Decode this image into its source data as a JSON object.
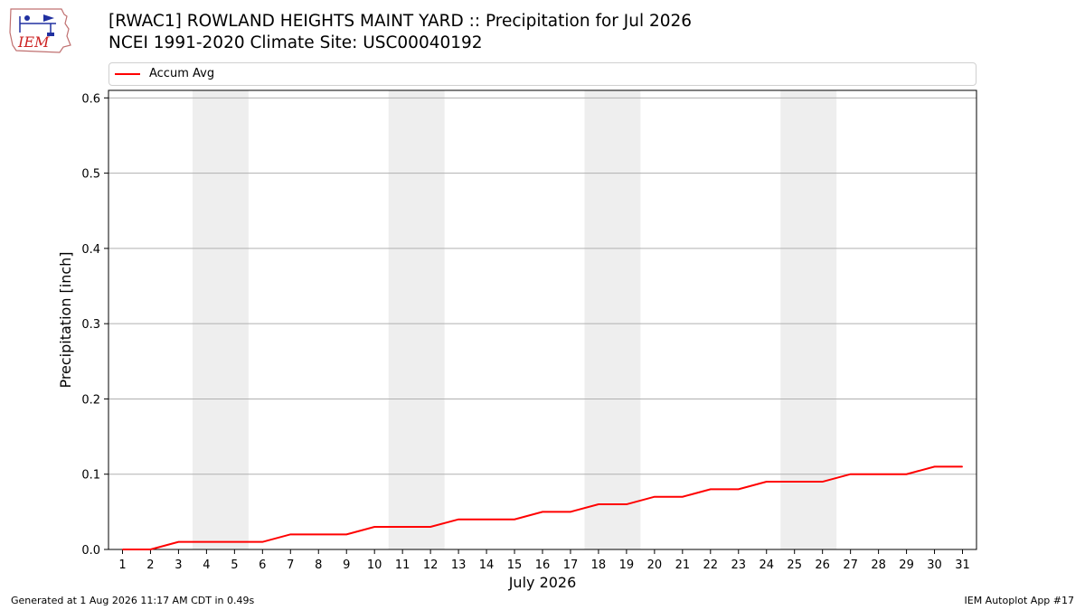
{
  "header": {
    "logo_text": "IEM",
    "title_line1": "[RWAC1] ROWLAND HEIGHTS MAINT YARD :: Precipitation for Jul 2026",
    "title_line2": "NCEI 1991-2020 Climate Site: USC00040192"
  },
  "footer": {
    "left": "Generated at 1 Aug 2026 11:17 AM CDT in 0.49s",
    "right": "IEM Autoplot App #17"
  },
  "colors": {
    "series": "#ff0000",
    "weekend_band": "#eeeeee",
    "grid": "#b0b0b0"
  },
  "chart_data": {
    "type": "line",
    "title": "[RWAC1] ROWLAND HEIGHTS MAINT YARD :: Precipitation for Jul 2026",
    "subtitle": "NCEI 1991-2020 Climate Site: USC00040192",
    "xlabel": "July 2026",
    "ylabel": "Precipitation [inch]",
    "x": [
      1,
      2,
      3,
      4,
      5,
      6,
      7,
      8,
      9,
      10,
      11,
      12,
      13,
      14,
      15,
      16,
      17,
      18,
      19,
      20,
      21,
      22,
      23,
      24,
      25,
      26,
      27,
      28,
      29,
      30,
      31
    ],
    "xlim": [
      0.5,
      31.5
    ],
    "ylim": [
      0,
      0.61
    ],
    "yticks": [
      0.0,
      0.1,
      0.2,
      0.3,
      0.4,
      0.5,
      0.6
    ],
    "ytick_labels": [
      "0.0",
      "0.1",
      "0.2",
      "0.3",
      "0.4",
      "0.5",
      "0.6"
    ],
    "grid": "horizontal",
    "legend": "top",
    "weekend_bands": [
      [
        3.5,
        5.5
      ],
      [
        10.5,
        12.5
      ],
      [
        17.5,
        19.5
      ],
      [
        24.5,
        26.5
      ]
    ],
    "series": [
      {
        "name": "Accum Avg",
        "color": "#ff0000",
        "values": [
          0.0,
          0.0,
          0.01,
          0.01,
          0.01,
          0.01,
          0.02,
          0.02,
          0.02,
          0.03,
          0.03,
          0.03,
          0.04,
          0.04,
          0.04,
          0.05,
          0.05,
          0.06,
          0.06,
          0.07,
          0.07,
          0.08,
          0.08,
          0.09,
          0.09,
          0.09,
          0.1,
          0.1,
          0.1,
          0.11,
          0.11
        ]
      }
    ]
  }
}
